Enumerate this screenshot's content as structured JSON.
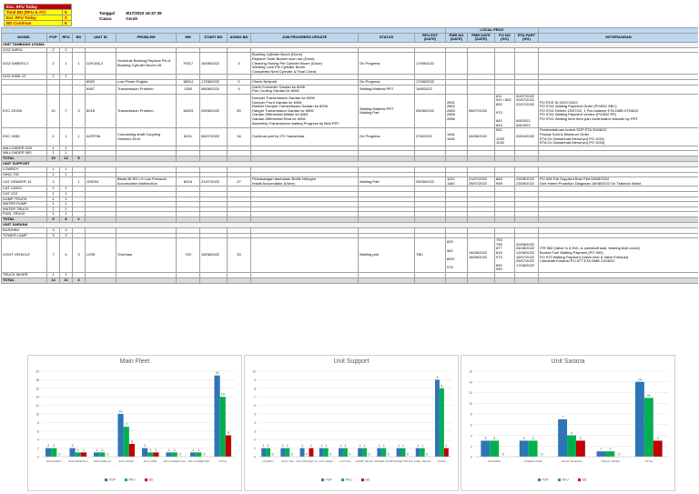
{
  "summary": {
    "title": "Exc. RFU Today",
    "items": [
      {
        "label": "Total BD (RFU & AT)",
        "value": "9"
      },
      {
        "label": "Est. RFU Today",
        "value": "3"
      },
      {
        "label": "BD Continue",
        "value": "6"
      }
    ]
  },
  "header": {
    "date_label": "Tanggal",
    "date": "8/17/2022 16:37:39",
    "weather_label": "Cuaca",
    "weather": "Cerah"
  },
  "table": {
    "group_header": "LOCAL PROC",
    "columns": [
      "MODEL",
      "POP",
      "RFU",
      "BD",
      "UNIT ID",
      "PROBLEM",
      "HM",
      "START BD",
      "AGING BD",
      "JOB PROGRESS UPDATE",
      "STATUS",
      "RFU EST (DATE)",
      "PMR NO (DATE)",
      "PMR DATE (DATE)",
      "PO NO (HO)",
      "ETA PART (HO)",
      "KETERANGAN"
    ],
    "sections": [
      {
        "title": "UNIT TAMBANG UTAMA",
        "rows": [
          [
            "DOZ D6RXL",
            "2",
            "2"
          ],
          [
            "DOZ D85ESS-2",
            "2",
            "1",
            "1",
            "DZK106-2",
            "Schedule Backlog Replace Pin & Bushing Cylinder Boom Lift",
            "79317",
            "16/08/2022",
            "3",
            "Bushing Cylinder Boom (Done)\nReplace Tooth Bucket worn out (Done)\nCleaning Hosing Pin Cylinder Boom (Done)\nWelding Lock Pin Cylinder Boom\nCompleted Next Cylinder & Final Check",
            "On Progress",
            "17/08/2022"
          ],
          [
            "DOZ D65E-12",
            "1",
            "1"
          ],
          [
            null,
            null,
            null,
            null,
            "6063",
            "Low Power Engine",
            "18514",
            "17/08/2022",
            "0",
            "Check Network",
            "On Progress",
            "17/08/2022"
          ],
          [
            null,
            null,
            null,
            null,
            "6067",
            "Transmission Problem",
            "1350",
            "08/08/2022",
            "9",
            "Ganti Converter Gardan ke 6006\nPan Cooling Gardan ke 6006",
            "Waiting Material PRT",
            "18/8/2022"
          ],
          [
            "EXC ZX200",
            "10",
            "7",
            "3",
            "6018",
            "Transmission Problem",
            "10823",
            "29/06/2022",
            "50",
            "Dumper Transmission Gardan ke 6006\nDumper Front Gardan ke 6006\nRubber Dumper Transmission Gardan ke 6006\nHanger Transmission Gardan ke 6006\nGardan Differential Middle ke 6061\nGardan Differential Rear ke 6006\nAssembly Transmission waiting Progress by Mek PRT",
            "Waiting Material PRT\nWaiting Part",
            "25/08/2022",
            "2801\n2802\n2853\n2855\n2856",
            "06/07/2022",
            "811\n931 / 802\n853\n\n973\n\n842\n843",
            "20/07/2022\n20/07/2022\n22/07/2022\n\n\n\n5/8/2022\n5/8/2022",
            "PO RCE Dt 22/07/2022\nPO 9741 Waiting Payment Order (PV/802 SBC)\nPO 9741 Deliver 22/07/22, 1 Pcs balance ETA DMB 27/08/22\nPO 9741 Waiting Payment Vendor (PV/802 PP)\nPO 9741 Waiting Item Item part confirmation transfer by PRT"
          ],
          [
            "EXC 345D",
            "2",
            "1",
            "1",
            "ACRT06",
            "Connecting shaft Coupling Gearbox Error",
            "8101",
            "06/07/2022",
            "34",
            "Continue part by ITC Samarinda",
            "On Progress",
            "27/8/2022",
            "1461\n1462",
            "04/08/2022",
            "951\n\n1033\n1034",
            "29/04/2022",
            "Pemberitahuan indent SOP ETA 30/08/22\nProduk Sold & Minimum Order\nETA On Samarinda Menunyu( PO 1031)\nETA On Samarinda Menunyu( PO 1034)"
          ],
          [
            "WA LOADER D20",
            "1",
            "1"
          ],
          [
            "WA LOADER 500",
            "1",
            "1"
          ]
        ],
        "total": [
          "TOTAL",
          "19",
          "14",
          "5"
        ]
      },
      {
        "title": "UNIT SUPPORT",
        "rows": [
          [
            "LOWBOY",
            "1",
            "1"
          ],
          [
            "HINO 700",
            "1",
            "1"
          ],
          [
            "CAT GRADER 14",
            "1",
            null,
            "1",
            "GRD04",
            "Blade lift RH LH Low Pressure Accumulator Malfunction",
            "8015",
            "21/07/2022",
            "27",
            "Pemasangan tambahan Bottle Nitrogen\nInstall Accumulator (Done)",
            "Waiting Part",
            "25/08/2022",
            "1101\n1160",
            "21/07/2022\n28/07/2022",
            "848\n908",
            "23/08/2022\n23/08/2022",
            "PO 908 Full Supplied Bms Pkrt 08/08/2022\nDue Indent Proaction Diagunan 18/08/2022 On Trakindo Waist"
          ],
          [
            "CAT 140GC",
            "1",
            "1"
          ],
          [
            "CAT 12G",
            "1",
            "1"
          ],
          [
            "DUMP TRUCK",
            "1",
            "1"
          ],
          [
            "WATER PUMP",
            "1",
            "1"
          ],
          [
            "WATER TRUCK",
            "1",
            "1"
          ],
          [
            "FUEL TRUCK",
            "1",
            "1"
          ]
        ],
        "total": [
          "TOTAL",
          "9",
          "8",
          "1"
        ]
      },
      {
        "title": "UNIT SARANA",
        "rows": [
          [
            "BUS/MINI",
            "3",
            "3"
          ],
          [
            "TOWER LAMP",
            "3",
            "3"
          ],
          [
            "LIGHT VEHICLE",
            "7",
            "4",
            "3",
            "LV05",
            "Overhaul",
            "745",
            "15/08/2022",
            "33",
            null,
            "Waiting part",
            "TBC",
            "825\n\n962\n\n8907\n\n976",
            "16/08/2022\n16/08/2022",
            "793\n795\n877\n818\n973\n\n892\n990",
            "20/08/2022\n24/08/2022\n12/08/2022\n15/07/2022\n25/07/2022\n17/08/2022",
            "ITR 982 (Valve In & Exh, & camshaft seal, bearing blok conrd)\nBucket Fuel Waiting Payment (PO 990)\nPO 973 Waiting Payment (Valve Inlet & Valve Exhaust)\nCamshaft Exhaust PO 877 ETA DMB 21/08/22"
          ],
          [
            "TRUCK MIXER",
            "1",
            "1"
          ]
        ],
        "total": [
          "TOTAL",
          "14",
          "11",
          "3"
        ]
      }
    ]
  },
  "chart_data": [
    {
      "type": "bar",
      "title": "Main Fleet",
      "categories": [
        "DOZ D6RXL",
        "DOZ D85ESS-2",
        "DOZ D65E-12",
        "EXC ZX200",
        "EXC 345D",
        "WA LOADER D20",
        "WA LOADER 500",
        "TOTAL"
      ],
      "series": [
        {
          "name": "POP",
          "color": "#2e75b6",
          "values": [
            2,
            2,
            1,
            10,
            2,
            1,
            1,
            19
          ]
        },
        {
          "name": "RFU",
          "color": "#00b050",
          "values": [
            2,
            1,
            1,
            7,
            1,
            1,
            1,
            14
          ]
        },
        {
          "name": "BD",
          "color": "#c00000",
          "values": [
            0,
            1,
            0,
            3,
            1,
            0,
            0,
            5
          ]
        }
      ],
      "ylim": [
        0,
        20
      ],
      "yticks": [
        0,
        2,
        4,
        6,
        8,
        10,
        12,
        14,
        16,
        18,
        20
      ],
      "grid": true,
      "legend": "bottom"
    },
    {
      "type": "bar",
      "title": "Unit Support",
      "categories": [
        "LOWBOY",
        "HINO 700",
        "CAT GRADER 14",
        "CAT 140GC",
        "CAT 12G",
        "DUMP TRUCK",
        "WATER PUMP",
        "WATER TRUCK",
        "FUEL TRUCK",
        "TOTAL"
      ],
      "series": [
        {
          "name": "POP",
          "color": "#2e75b6",
          "values": [
            1,
            1,
            1,
            1,
            1,
            1,
            1,
            1,
            1,
            9
          ]
        },
        {
          "name": "RFU",
          "color": "#00b050",
          "values": [
            1,
            1,
            0,
            1,
            1,
            1,
            1,
            1,
            1,
            8
          ]
        },
        {
          "name": "BD",
          "color": "#c00000",
          "values": [
            0,
            0,
            1,
            0,
            0,
            0,
            0,
            0,
            0,
            1
          ]
        }
      ],
      "ylim": [
        0,
        10
      ],
      "yticks": [
        0,
        1,
        2,
        3,
        4,
        5,
        6,
        7,
        8,
        9,
        10
      ],
      "grid": true,
      "legend": "bottom"
    },
    {
      "type": "bar",
      "title": "Unit Sarana",
      "categories": [
        "BUS/MINI",
        "TOWER LAMP",
        "LIGHT VEHICLE",
        "TRUCK MIXER",
        "TOTAL"
      ],
      "series": [
        {
          "name": "POP",
          "color": "#2e75b6",
          "values": [
            3,
            3,
            7,
            1,
            14
          ]
        },
        {
          "name": "RFU",
          "color": "#00b050",
          "values": [
            3,
            3,
            4,
            1,
            11
          ]
        },
        {
          "name": "BD",
          "color": "#c00000",
          "values": [
            0,
            0,
            3,
            0,
            3
          ]
        }
      ],
      "ylim": [
        0,
        16
      ],
      "yticks": [
        0,
        2,
        4,
        6,
        8,
        10,
        12,
        14,
        16
      ],
      "grid": true,
      "legend": "bottom"
    }
  ]
}
